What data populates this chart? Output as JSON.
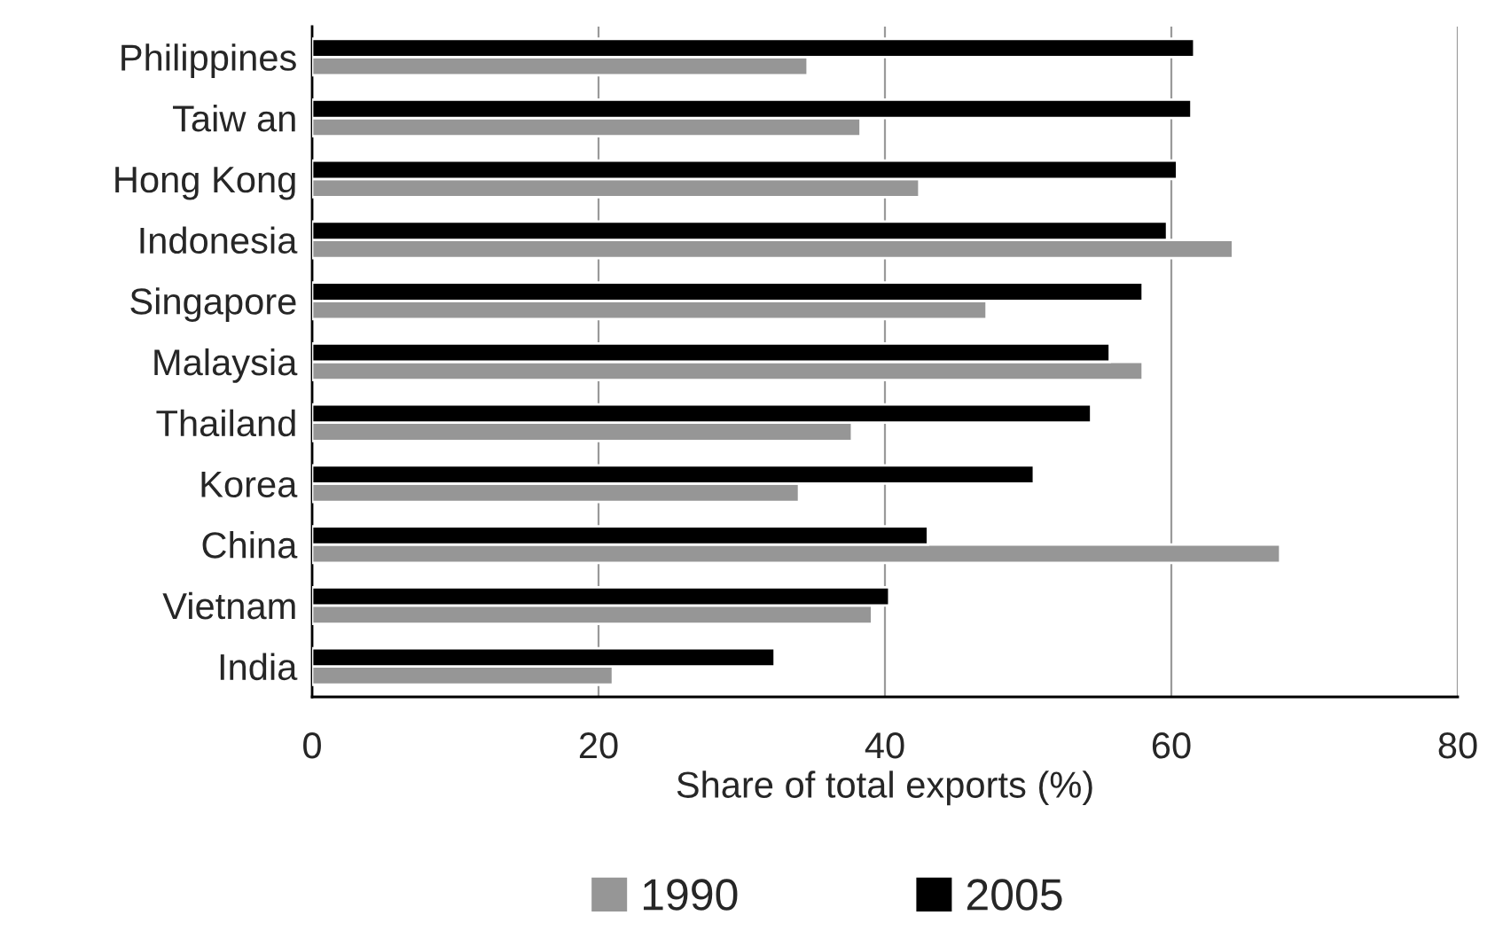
{
  "chart_data": {
    "type": "bar",
    "orientation": "horizontal",
    "xlabel": "Share of total exports (%)",
    "categories": [
      "Philippines",
      "Taiw an",
      "Hong Kong",
      "Indonesia",
      "Singapore",
      "Malaysia",
      "Thailand",
      "Korea",
      "China",
      "Vietnam",
      "India"
    ],
    "series": [
      {
        "name": "1990",
        "color": "#969696",
        "values": [
          34.6,
          38.3,
          42.4,
          64.3,
          47.1,
          58.0,
          37.7,
          34.0,
          67.6,
          39.1,
          21.0
        ]
      },
      {
        "name": "2005",
        "color": "#000000",
        "values": [
          61.6,
          61.4,
          60.4,
          59.7,
          58.0,
          55.7,
          54.4,
          50.4,
          43.0,
          40.3,
          32.3
        ]
      }
    ],
    "xlim": [
      0,
      80
    ],
    "xticks": [
      0,
      20,
      40,
      60,
      80
    ],
    "grid": "x",
    "legend": "bottom"
  }
}
